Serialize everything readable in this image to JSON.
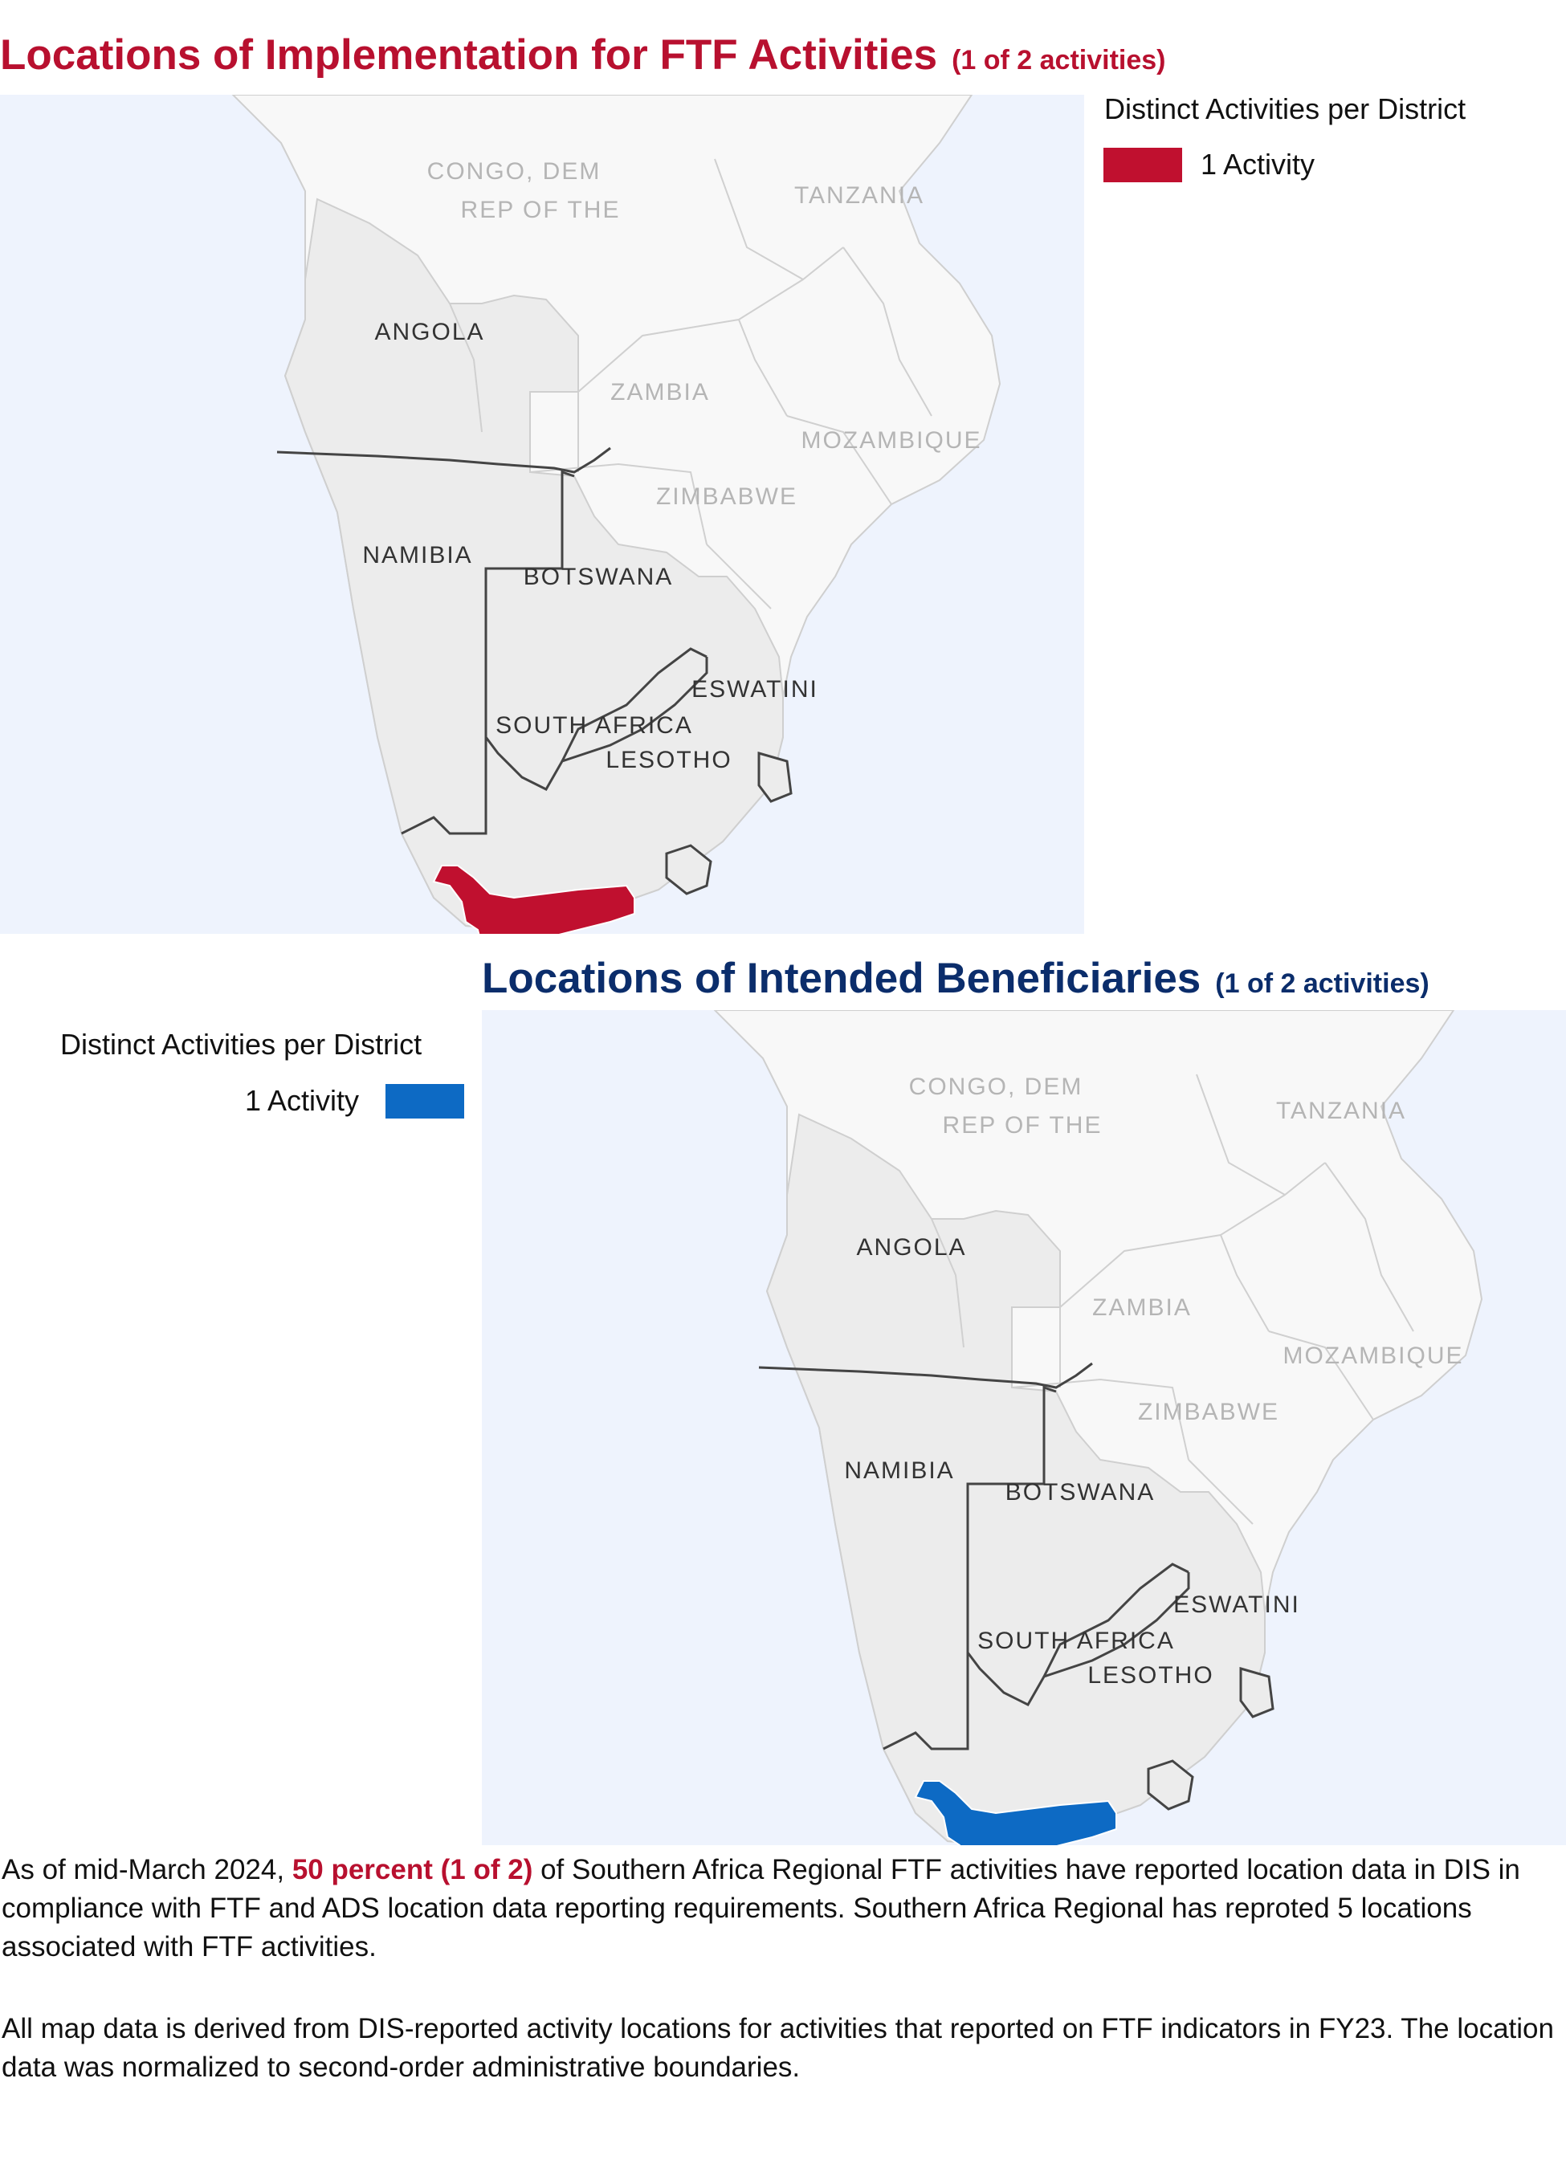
{
  "map1": {
    "title": "Locations of Implementation for FTF Activities",
    "subtitle": "(1 of 2 activities)",
    "legend_title": "Distinct Activities per District",
    "legend_label": "1 Activity",
    "highlight_color": "#c0102f"
  },
  "map2": {
    "title": "Locations of Intended Beneficiaries",
    "subtitle": "(1 of 2 activities)",
    "legend_title": "Distinct Activities per District",
    "legend_label": "1 Activity",
    "highlight_color": "#0d6ac4"
  },
  "country_labels": {
    "congo_line1": "CONGO, DEM",
    "congo_line2": "REP OF THE",
    "tanzania": "TANZANIA",
    "angola": "ANGOLA",
    "zambia": "ZAMBIA",
    "mozambique": "MOZAMBIQUE",
    "zimbabwe": "ZIMBABWE",
    "namibia": "NAMIBIA",
    "botswana": "BOTSWANA",
    "eswatini": "ESWATINI",
    "south_africa": "SOUTH AFRICA",
    "lesotho": "LESOTHO"
  },
  "colors": {
    "ocean": "#eef3fd",
    "land_region": "#ececec",
    "land_other": "#f8f8f8",
    "implementation_red": "#c0102f",
    "beneficiary_blue": "#0d6ac4"
  },
  "paragraph1": {
    "prefix": "As of mid-March 2024, ",
    "highlight": "50 percent (1 of 2)",
    "suffix": " of Southern Africa Regional FTF activities have reported location data in DIS in compliance with FTF and ADS location data reporting requirements. Southern Africa Regional has reproted 5 locations associated with FTF activities."
  },
  "paragraph2": "All map data is derived from DIS-reported activity locations for activities that reported on FTF indicators in FY23. The location data was normalized to second-order administrative boundaries."
}
